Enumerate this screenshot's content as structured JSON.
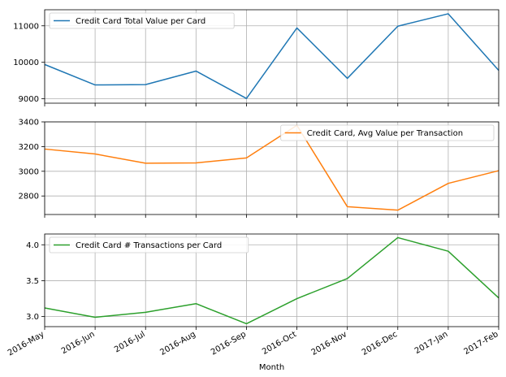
{
  "chart_data": {
    "type": "line",
    "shared_x": [
      "2016-May",
      "2016-Jun",
      "2016-Jul",
      "2016-Aug",
      "2016-Sep",
      "2016-Oct",
      "2016-Nov",
      "2016-Dec",
      "2017-Jan",
      "2017-Feb"
    ],
    "xlabel": "Month",
    "grid": true,
    "panels": [
      {
        "series": [
          {
            "name": "Credit Card Total Value per Card",
            "color": "#1f77b4",
            "values": [
              9940,
              9380,
              9390,
              9760,
              9010,
              10940,
              9560,
              10990,
              11330,
              9780
            ]
          }
        ],
        "ylim": [
          8880,
          11440
        ],
        "yticks": [
          9000,
          10000,
          11000
        ],
        "ytick_labels": [
          "9000",
          "10000",
          "11000"
        ],
        "legend": "top-left"
      },
      {
        "series": [
          {
            "name": "Credit Card, Avg Value per Transaction",
            "color": "#ff7f0e",
            "values": [
              3180,
              3140,
              3065,
              3068,
              3108,
              3372,
              2713,
              2685,
              2902,
              3005
            ]
          }
        ],
        "ylim": [
          2650,
          3400
        ],
        "yticks": [
          2800,
          3000,
          3200,
          3400
        ],
        "ytick_labels": [
          "2800",
          "3000",
          "3200",
          "3400"
        ],
        "legend": "top-right"
      },
      {
        "series": [
          {
            "name": "Credit Card # Transactions per Card",
            "color": "#2ca02c",
            "values": [
              3.12,
              2.99,
              3.06,
              3.18,
              2.9,
              3.25,
              3.53,
              4.1,
              3.91,
              3.26
            ]
          }
        ],
        "ylim": [
          2.86,
          4.15
        ],
        "yticks": [
          3.0,
          3.5,
          4.0
        ],
        "ytick_labels": [
          "3.0",
          "3.5",
          "4.0"
        ],
        "legend": "top-left"
      }
    ]
  }
}
